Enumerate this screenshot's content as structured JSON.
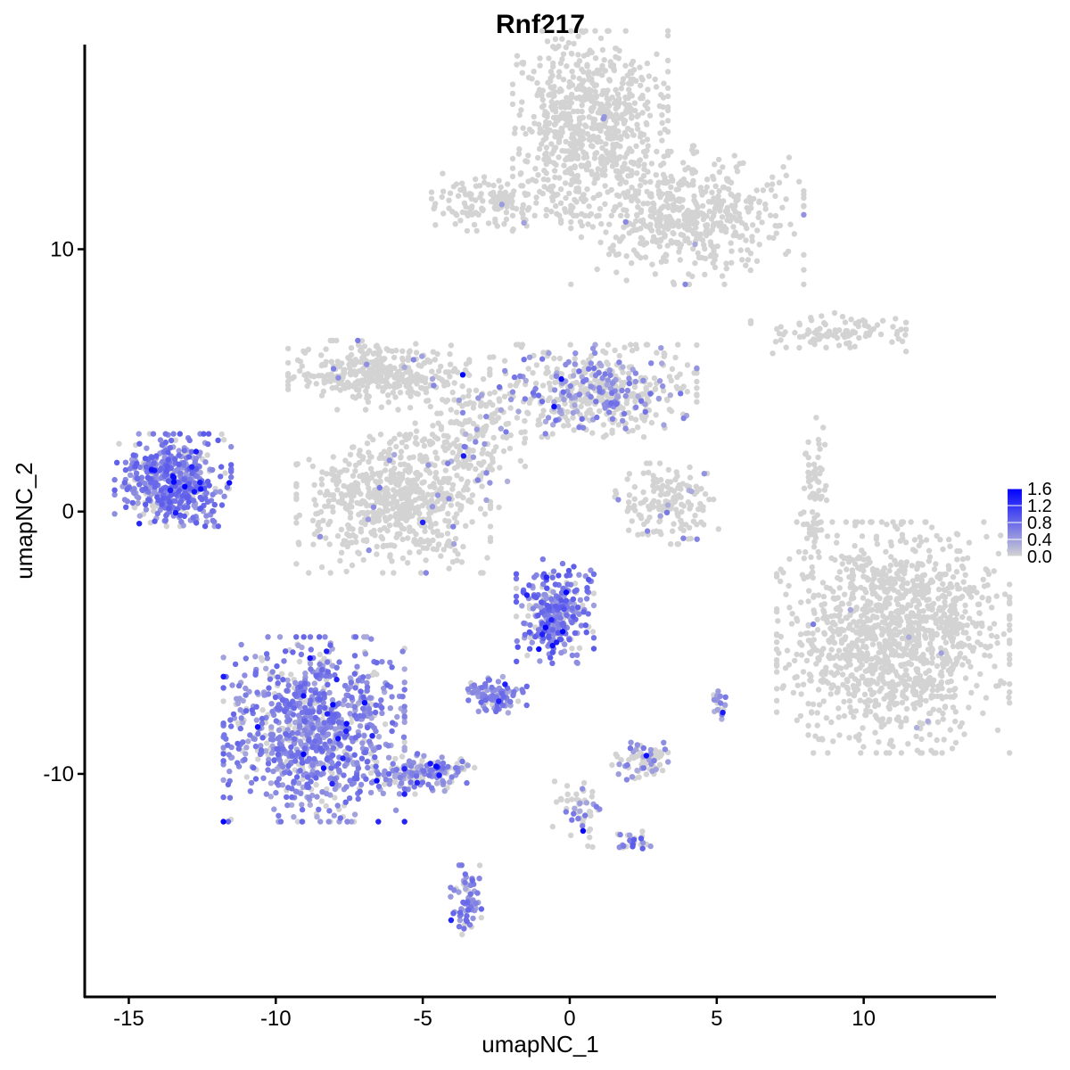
{
  "chart_data": {
    "type": "scatter",
    "title": "Rnf217",
    "xlabel": "umapNC_1",
    "ylabel": "umapNC_2",
    "xlim": [
      -16.5,
      14.5
    ],
    "ylim": [
      -18.5,
      17.8
    ],
    "x_ticks": [
      -15,
      -10,
      -5,
      0,
      5,
      10
    ],
    "x_tick_labels": [
      "-15",
      "-10",
      "-5",
      "0",
      "5",
      "10"
    ],
    "y_ticks": [
      -10,
      0,
      10
    ],
    "y_tick_labels": [
      "-10",
      "0",
      "10"
    ],
    "grid": false,
    "legend": {
      "position": "right",
      "type": "colorbar",
      "min": 0.0,
      "max": 1.6,
      "ticks": [
        0.0,
        0.4,
        0.8,
        1.2,
        1.6
      ],
      "tick_labels": [
        "0.0",
        "0.4",
        "0.8",
        "1.2",
        "1.6"
      ],
      "low_color": "#d3d3d3",
      "high_color": "#0000ff"
    },
    "clusters": [
      {
        "center": [
          -13.5,
          1.2
        ],
        "spread": [
          0.9,
          0.8
        ],
        "n": 520,
        "expr_frac": 0.85,
        "expr_mean": 0.65
      },
      {
        "center": [
          -8.7,
          -8.3
        ],
        "spread": [
          1.4,
          1.6
        ],
        "n": 950,
        "expr_frac": 0.82,
        "expr_mean": 0.6
      },
      {
        "center": [
          -5.0,
          -10.0
        ],
        "spread": [
          0.8,
          0.35
        ],
        "n": 160,
        "expr_frac": 0.7,
        "expr_mean": 0.55
      },
      {
        "center": [
          -3.5,
          -14.8
        ],
        "spread": [
          0.25,
          0.6
        ],
        "n": 70,
        "expr_frac": 0.8,
        "expr_mean": 0.6
      },
      {
        "center": [
          -0.5,
          -3.8
        ],
        "spread": [
          0.6,
          0.9
        ],
        "n": 300,
        "expr_frac": 0.75,
        "expr_mean": 0.7
      },
      {
        "center": [
          -2.5,
          -7.0
        ],
        "spread": [
          0.5,
          0.35
        ],
        "n": 90,
        "expr_frac": 0.8,
        "expr_mean": 0.6
      },
      {
        "center": [
          2.5,
          -9.5
        ],
        "spread": [
          0.5,
          0.35
        ],
        "n": 70,
        "expr_frac": 0.5,
        "expr_mean": 0.5
      },
      {
        "center": [
          0.3,
          -11.5
        ],
        "spread": [
          0.4,
          0.6
        ],
        "n": 50,
        "expr_frac": 0.3,
        "expr_mean": 0.5
      },
      {
        "center": [
          2.2,
          -12.6
        ],
        "spread": [
          0.4,
          0.2
        ],
        "n": 30,
        "expr_frac": 0.4,
        "expr_mean": 0.7
      },
      {
        "center": [
          5.0,
          -7.4
        ],
        "spread": [
          0.15,
          0.25
        ],
        "n": 20,
        "expr_frac": 0.6,
        "expr_mean": 0.5
      },
      {
        "center": [
          -6.0,
          0.3
        ],
        "spread": [
          1.5,
          1.2
        ],
        "n": 650,
        "expr_frac": 0.04,
        "expr_mean": 0.5
      },
      {
        "center": [
          -6.5,
          5.2
        ],
        "spread": [
          1.4,
          0.6
        ],
        "n": 350,
        "expr_frac": 0.03,
        "expr_mean": 0.5
      },
      {
        "center": [
          -3.5,
          2.8
        ],
        "spread": [
          0.9,
          1.2
        ],
        "n": 200,
        "expr_frac": 0.12,
        "expr_mean": 0.5
      },
      {
        "center": [
          0.8,
          4.6
        ],
        "spread": [
          1.6,
          0.8
        ],
        "n": 500,
        "expr_frac": 0.3,
        "expr_mean": 0.55
      },
      {
        "center": [
          3.3,
          0.3
        ],
        "spread": [
          0.8,
          0.7
        ],
        "n": 160,
        "expr_frac": 0.05,
        "expr_mean": 0.5
      },
      {
        "center": [
          0.7,
          14.8
        ],
        "spread": [
          1.2,
          1.6
        ],
        "n": 700,
        "expr_frac": 0.005,
        "expr_mean": 0.5
      },
      {
        "center": [
          4.0,
          11.3
        ],
        "spread": [
          1.8,
          1.2
        ],
        "n": 500,
        "expr_frac": 0.01,
        "expr_mean": 0.5
      },
      {
        "center": [
          -2.5,
          11.8
        ],
        "spread": [
          1.0,
          0.5
        ],
        "n": 150,
        "expr_frac": 0.01,
        "expr_mean": 0.5
      },
      {
        "center": [
          8.8,
          6.8
        ],
        "spread": [
          1.2,
          0.35
        ],
        "n": 100,
        "expr_frac": 0.01,
        "expr_mean": 0.5
      },
      {
        "center": [
          8.3,
          0.5
        ],
        "spread": [
          0.2,
          1.4
        ],
        "n": 70,
        "expr_frac": 0.0,
        "expr_mean": 0.5
      },
      {
        "center": [
          11.0,
          -4.8
        ],
        "spread": [
          1.8,
          2.0
        ],
        "n": 1300,
        "expr_frac": 0.005,
        "expr_mean": 0.5
      }
    ]
  }
}
